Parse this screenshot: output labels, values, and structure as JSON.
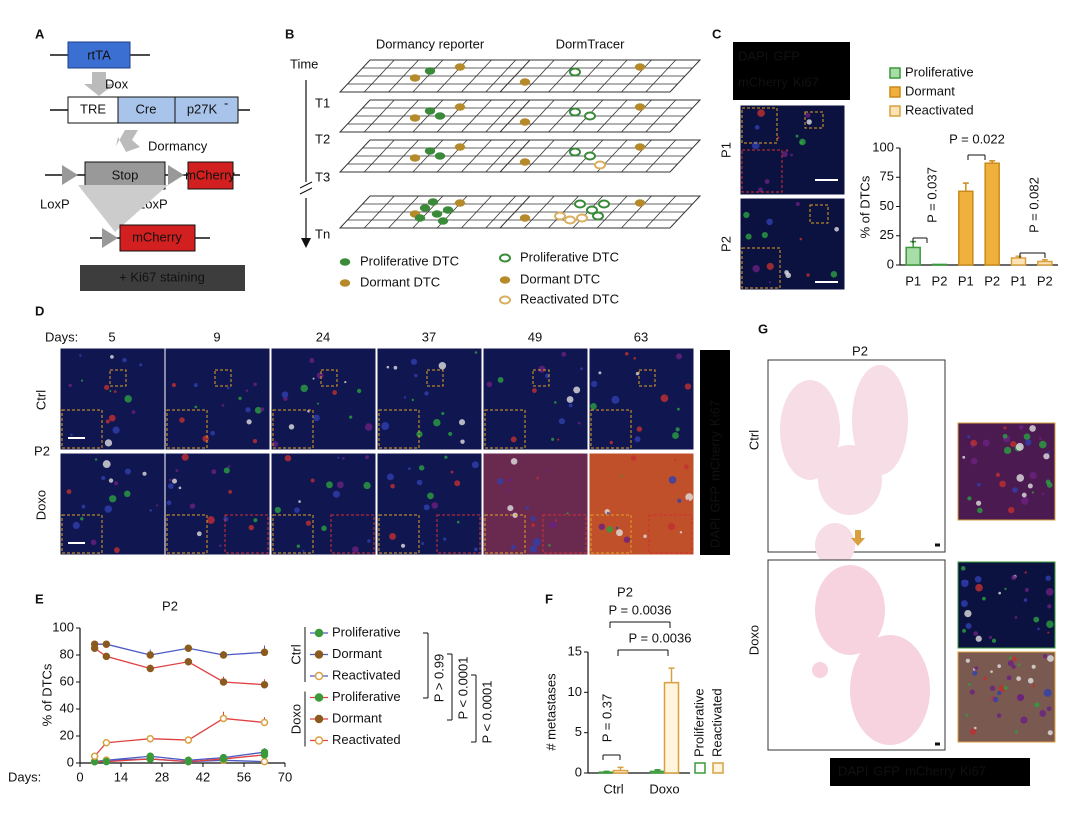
{
  "panel_labels": [
    "A",
    "B",
    "C",
    "D",
    "E",
    "F",
    "G"
  ],
  "stains": [
    "DAPI",
    "GFP",
    "mCherry",
    "Ki67"
  ],
  "panel_a": {
    "rtta": "rtTA",
    "dox": "Dox",
    "tre": "TRE",
    "cre": "Cre",
    "p27": "p27K",
    "p27_sup": "-",
    "dormancy": "Dormancy",
    "stop": "Stop",
    "mcherry": "mCherry",
    "loxp": "LoxP",
    "staining": "+ Ki67 staining"
  },
  "panel_b": {
    "col1": "Dormancy reporter",
    "col2": "DormTracer",
    "time": "Time",
    "timepoints": [
      "T1",
      "T2",
      "T3",
      "Tn"
    ],
    "legend_left": [
      "Proliferative DTC",
      "Dormant DTC"
    ],
    "legend_right": [
      "Proliferative DTC",
      "Dormant DTC",
      "Reactivated DTC"
    ]
  },
  "panel_c": {
    "rows": [
      "P1",
      "P2"
    ]
  },
  "panel_d": {
    "days_label": "Days:",
    "days": [
      5,
      9,
      24,
      37,
      49,
      63
    ],
    "rows": [
      "Ctrl",
      "P2",
      "Doxo"
    ]
  },
  "panel_g": {
    "title": "P2",
    "rows": [
      "Ctrl",
      "Doxo"
    ]
  },
  "chart_data": [
    {
      "type": "bar",
      "y_label": "% of DTCs",
      "categories": [
        "P1",
        "P2",
        "P1",
        "P2",
        "P1",
        "P2"
      ],
      "series": [
        {
          "name": "Proliferative",
          "color": "#a8dca8",
          "edge": "#3a9a3a",
          "values": [
            15,
            0.5,
            null,
            null,
            null,
            null
          ],
          "errors": [
            5,
            null,
            null,
            null,
            null,
            null
          ]
        },
        {
          "name": "Dormant",
          "color": "#f0b13c",
          "edge": "#c98a1a",
          "values": [
            null,
            null,
            63,
            87,
            null,
            null
          ],
          "errors": [
            null,
            null,
            7,
            2,
            null,
            null
          ]
        },
        {
          "name": "Reactivated",
          "color": "#fbe3b5",
          "edge": "#d9a040",
          "values": [
            null,
            null,
            null,
            null,
            6,
            3
          ],
          "errors": [
            null,
            null,
            null,
            null,
            1.5,
            1.5
          ]
        }
      ],
      "ylim": [
        0,
        100
      ],
      "yticks": [
        0,
        25,
        50,
        75,
        100
      ],
      "annotations": [
        "P = 0.037",
        "P = 0.022",
        "P = 0.082"
      ]
    },
    {
      "type": "line",
      "title": "P2",
      "x_label": "Days:",
      "y_label": "% of DTCs",
      "x": [
        5,
        9,
        24,
        37,
        49,
        63
      ],
      "xlim": [
        0,
        70
      ],
      "xticks": [
        0,
        14,
        28,
        42,
        56,
        70
      ],
      "ylim": [
        0,
        100
      ],
      "yticks": [
        0,
        20,
        40,
        60,
        80,
        100
      ],
      "groups": [
        {
          "name": "Ctrl",
          "color": "#4a5bc4",
          "series": [
            {
              "name": "Proliferative",
              "marker": "#3a9a3a",
              "values": [
                1,
                2,
                5,
                2,
                4,
                8
              ],
              "errors": [
                1,
                1,
                2,
                1,
                2,
                3
              ]
            },
            {
              "name": "Dormant",
              "marker": "#8b5a1e",
              "values": [
                88,
                88,
                80,
                85,
                80,
                82
              ],
              "errors": [
                2,
                2,
                4,
                2,
                3,
                5
              ]
            },
            {
              "name": "Reactivated",
              "marker": "#d9a040",
              "values": [
                1,
                2,
                3,
                1,
                2,
                1
              ],
              "errors": [
                1,
                1,
                1,
                1,
                1,
                1
              ]
            }
          ]
        },
        {
          "name": "Doxo",
          "color": "#e04040",
          "series": [
            {
              "name": "Proliferative",
              "marker": "#3a9a3a",
              "values": [
                1,
                1,
                3,
                1,
                3,
                6
              ],
              "errors": [
                1,
                1,
                1,
                1,
                1,
                2
              ]
            },
            {
              "name": "Dormant",
              "marker": "#8b5a1e",
              "values": [
                85,
                79,
                70,
                75,
                60,
                58
              ],
              "errors": [
                2,
                2,
                3,
                2,
                4,
                4
              ]
            },
            {
              "name": "Reactivated",
              "marker": "#d9a040",
              "values": [
                5,
                15,
                18,
                17,
                33,
                30
              ],
              "errors": [
                2,
                2,
                2,
                2,
                5,
                4
              ]
            }
          ]
        }
      ],
      "annotations": [
        "P > 0.99",
        "P < 0.0001",
        "P < 0.0001"
      ]
    },
    {
      "type": "bar",
      "title": "P2",
      "y_label": "# metastases",
      "categories": [
        "Ctrl",
        "Doxo"
      ],
      "series": [
        {
          "name": "Proliferative",
          "color": "#ffffff",
          "edge": "#3a9a3a",
          "values": [
            0.1,
            0.2
          ],
          "errors": [
            0.1,
            0.2
          ]
        },
        {
          "name": "Reactivated",
          "color": "#fff4dd",
          "edge": "#d9a040",
          "values": [
            0.3,
            11.2
          ],
          "errors": [
            0.4,
            1.8
          ]
        }
      ],
      "ylim": [
        0,
        15
      ],
      "yticks": [
        0,
        5,
        10,
        15
      ],
      "annotations": [
        "P = 0.0036",
        "P = 0.0036",
        "P = 0.37"
      ]
    }
  ]
}
